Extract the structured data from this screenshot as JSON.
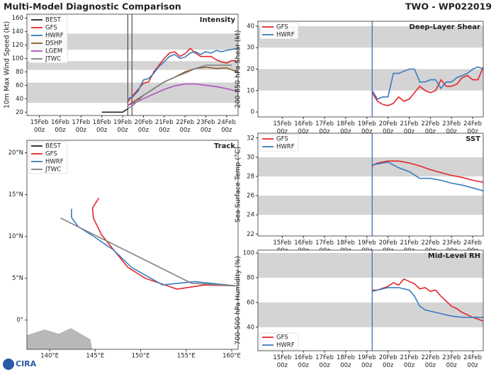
{
  "title": "Multi-Model Diagnostic Comparison",
  "storm_id": "TWO - WP022019",
  "logo": "CIRA",
  "chart_data": [
    {
      "type": "line",
      "title": "Intensity",
      "ylabel": "10m Max Wind Speed (kt)",
      "legend": "upper left",
      "xlim": [
        14.4,
        24.55
      ],
      "ylim": [
        15,
        166
      ],
      "xticks": [
        {
          "value": 15,
          "label": "15Feb 00z"
        },
        {
          "value": 16,
          "label": "16Feb 00z"
        },
        {
          "value": 17,
          "label": "17Feb 00z"
        },
        {
          "value": 18,
          "label": "18Feb 00z"
        },
        {
          "value": 19,
          "label": "19Feb 00z"
        },
        {
          "value": 20,
          "label": "20Feb 00z"
        },
        {
          "value": 21,
          "label": "21Feb 00z"
        },
        {
          "value": 22,
          "label": "22Feb 00z"
        },
        {
          "value": 23,
          "label": "23Feb 00z"
        },
        {
          "value": 24,
          "label": "24Feb 00z"
        }
      ],
      "yticks": [
        20,
        40,
        60,
        80,
        100,
        120,
        140,
        160
      ],
      "bands": [
        [
          34,
          64
        ],
        [
          83,
          96
        ],
        [
          113,
          137
        ]
      ],
      "band_color": "#d4d4d4",
      "vlines": [
        19.25,
        19.45
      ],
      "vline_color": "#5a4a4a",
      "series": [
        {
          "name": "BEST",
          "color": "#222222",
          "x": [
            18,
            18.5,
            19,
            19.25
          ],
          "values": [
            20,
            20,
            20,
            25
          ]
        },
        {
          "name": "GFS",
          "color": "#e3262a",
          "x": [
            19.25,
            19.5,
            20,
            20.25,
            20.5,
            21,
            21.25,
            21.5,
            21.75,
            22,
            22.25,
            22.5,
            22.75,
            23,
            23.25,
            23.5,
            23.75,
            24,
            24.25,
            24.5
          ],
          "values": [
            36,
            45,
            63,
            65,
            80,
            100,
            108,
            110,
            103,
            107,
            115,
            108,
            103,
            103,
            103,
            98,
            95,
            93,
            97,
            96
          ]
        },
        {
          "name": "HWRF",
          "color": "#3a7bbf",
          "x": [
            19.25,
            19.5,
            19.75,
            20,
            20.25,
            20.5,
            20.75,
            21,
            21.25,
            21.5,
            21.75,
            22,
            22.25,
            22.5,
            22.75,
            23,
            23.25,
            23.5,
            23.75,
            24,
            24.5
          ],
          "values": [
            40,
            43,
            52,
            68,
            70,
            78,
            88,
            95,
            103,
            106,
            100,
            102,
            108,
            110,
            106,
            110,
            108,
            112,
            110,
            112,
            115
          ]
        },
        {
          "name": "DSHP",
          "color": "#8b5a2b",
          "x": [
            19.25,
            19.5,
            20,
            20.5,
            21,
            21.5,
            22,
            22.5,
            23,
            23.5,
            24,
            24.5
          ],
          "values": [
            30,
            35,
            45,
            55,
            65,
            72,
            80,
            85,
            87,
            85,
            86,
            80
          ]
        },
        {
          "name": "LGEM",
          "color": "#b04fc0",
          "x": [
            19.25,
            19.5,
            20,
            20.5,
            21,
            21.5,
            22,
            22.5,
            23,
            23.5,
            24,
            24.5
          ],
          "values": [
            30,
            33,
            40,
            47,
            54,
            59,
            62,
            62,
            60,
            58,
            55,
            51
          ]
        },
        {
          "name": "JTWC",
          "color": "#808080",
          "x": [
            19.25,
            19.5,
            20,
            20.5,
            21,
            21.5,
            22,
            22.5,
            23,
            23.5,
            24,
            24.25
          ],
          "values": [
            25,
            30,
            45,
            55,
            65,
            72,
            78,
            85,
            90,
            90,
            90,
            90
          ]
        }
      ]
    },
    {
      "type": "line",
      "title": "Deep-Layer Shear",
      "ylabel": "200-850 hPa Shear (kt)",
      "legend": "upper left",
      "xlim": [
        13.85,
        24.5
      ],
      "ylim": [
        -2.3,
        42.3
      ],
      "xticks": [
        {
          "value": 15,
          "label": "15Feb 00z"
        },
        {
          "value": 16,
          "label": "16Feb 00z"
        },
        {
          "value": 17,
          "label": "17Feb 00z"
        },
        {
          "value": 18,
          "label": "18Feb 00z"
        },
        {
          "value": 19,
          "label": "19Feb 00z"
        },
        {
          "value": 20,
          "label": "20Feb 00z"
        },
        {
          "value": 21,
          "label": "21Feb 00z"
        },
        {
          "value": 22,
          "label": "22Feb 00z"
        },
        {
          "value": 23,
          "label": "23Feb 00z"
        },
        {
          "value": 24,
          "label": "24Feb 00z"
        }
      ],
      "yticks": [
        0,
        10,
        20,
        30,
        40
      ],
      "bands": [
        [
          10,
          20
        ],
        [
          30,
          40
        ]
      ],
      "band_color": "#d4d4d4",
      "vlines": [
        19.25
      ],
      "vline_color": "#3a5fbf",
      "series": [
        {
          "name": "GFS",
          "color": "#e3262a",
          "x": [
            19.25,
            19.5,
            19.75,
            20,
            20.25,
            20.5,
            20.75,
            21,
            21.25,
            21.5,
            21.75,
            22,
            22.25,
            22.5,
            22.75,
            23,
            23.25,
            23.5,
            23.75,
            24,
            24.25,
            24.5
          ],
          "values": [
            9,
            5,
            3.5,
            3,
            4,
            7,
            5,
            6,
            9,
            12,
            10,
            9,
            10,
            15,
            12,
            12,
            13,
            16,
            17,
            15,
            15,
            21
          ]
        },
        {
          "name": "HWRF",
          "color": "#3a7bbf",
          "x": [
            19.25,
            19.5,
            19.75,
            20,
            20.25,
            20.5,
            20.75,
            21,
            21.25,
            21.5,
            21.75,
            22,
            22.25,
            22.5,
            22.75,
            23,
            23.25,
            23.5,
            23.75,
            24,
            24.25,
            24.5
          ],
          "values": [
            10,
            6,
            7,
            7,
            18,
            18,
            19,
            20,
            20,
            14,
            14,
            15,
            15,
            11,
            14,
            14,
            16,
            17,
            18,
            20,
            21,
            20
          ]
        }
      ]
    },
    {
      "type": "line",
      "title": "Track",
      "legend": "upper left",
      "xlim": [
        137.5,
        160.7
      ],
      "ylim": [
        -3.5,
        21.5
      ],
      "xticks": [
        {
          "value": 140,
          "label": "140°E"
        },
        {
          "value": 145,
          "label": "145°E"
        },
        {
          "value": 150,
          "label": "150°E"
        },
        {
          "value": 155,
          "label": "155°E"
        },
        {
          "value": 160,
          "label": "160°E"
        }
      ],
      "yticks": [
        {
          "value": 0,
          "label": "0°"
        },
        {
          "value": 5,
          "label": "5°N"
        },
        {
          "value": 10,
          "label": "10°N"
        },
        {
          "value": 15,
          "label": "15°N"
        },
        {
          "value": 20,
          "label": "20°N"
        }
      ],
      "series": [
        {
          "name": "BEST",
          "color": "#222222",
          "x": [
            160.4,
            158.5,
            157.0
          ],
          "values": [
            4.1,
            4.2,
            4.2
          ]
        },
        {
          "name": "GFS",
          "color": "#e3262a",
          "x": [
            160.4,
            157.1,
            154.0,
            150.5,
            148.6,
            146.8,
            145.7,
            144.8,
            144.7,
            145.4
          ],
          "values": [
            4.1,
            4.2,
            3.7,
            5.0,
            6.3,
            8.7,
            10.2,
            12.2,
            13.4,
            14.6
          ]
        },
        {
          "name": "HWRF",
          "color": "#3a7bbf",
          "x": [
            160.4,
            155.9,
            152.4,
            149.0,
            147.0,
            144.7,
            143.1,
            142.4,
            142.4
          ],
          "values": [
            4.1,
            4.6,
            4.2,
            6.3,
            8.4,
            10.1,
            11.2,
            12.3,
            13.3
          ]
        },
        {
          "name": "JTWC",
          "color": "#808080",
          "x": [
            160.4,
            155.6,
            141.2
          ],
          "values": [
            4.1,
            4.4,
            12.2
          ]
        }
      ]
    },
    {
      "type": "line",
      "title": "SST",
      "ylabel": "Sea Surface Temp (°C)",
      "legend": "upper left",
      "xlim": [
        13.85,
        24.5
      ],
      "ylim": [
        21.8,
        32.5
      ],
      "xticks": [
        {
          "value": 15,
          "label": "15Feb 00z"
        },
        {
          "value": 16,
          "label": "16Feb 00z"
        },
        {
          "value": 17,
          "label": "17Feb 00z"
        },
        {
          "value": 18,
          "label": "18Feb 00z"
        },
        {
          "value": 19,
          "label": "19Feb 00z"
        },
        {
          "value": 20,
          "label": "20Feb 00z"
        },
        {
          "value": 21,
          "label": "21Feb 00z"
        },
        {
          "value": 22,
          "label": "22Feb 00z"
        },
        {
          "value": 23,
          "label": "23Feb 00z"
        },
        {
          "value": 24,
          "label": "24Feb 00z"
        }
      ],
      "yticks": [
        22,
        24,
        26,
        28,
        30,
        32
      ],
      "bands": [
        [
          24,
          26
        ],
        [
          28,
          30
        ]
      ],
      "band_color": "#d4d4d4",
      "vlines": [
        19.25
      ],
      "vline_color": "#3a5fbf",
      "series": [
        {
          "name": "GFS",
          "color": "#e3262a",
          "x": [
            19.25,
            19.5,
            20,
            20.5,
            21,
            21.5,
            22,
            22.5,
            23,
            23.5,
            24,
            24.5
          ],
          "values": [
            29.1,
            29.4,
            29.6,
            29.6,
            29.4,
            29.1,
            28.7,
            28.4,
            28.1,
            27.9,
            27.6,
            27.4
          ]
        },
        {
          "name": "HWRF",
          "color": "#3a7bbf",
          "x": [
            19.25,
            19.5,
            20,
            20.5,
            21,
            21.5,
            22,
            22.5,
            23,
            23.5,
            24,
            24.5
          ],
          "values": [
            29.2,
            29.3,
            29.5,
            28.9,
            28.5,
            27.8,
            27.8,
            27.6,
            27.3,
            27.1,
            26.8,
            26.5
          ]
        }
      ]
    },
    {
      "type": "line",
      "title": "Mid-Level RH",
      "ylabel": "700-500 hPa Humidity (%)",
      "legend": "lower left",
      "xlim": [
        13.85,
        24.5
      ],
      "ylim": [
        21,
        102.3
      ],
      "xticks": [
        {
          "value": 15,
          "label": "15Feb 00z"
        },
        {
          "value": 16,
          "label": "16Feb 00z"
        },
        {
          "value": 17,
          "label": "17Feb 00z"
        },
        {
          "value": 18,
          "label": "18Feb 00z"
        },
        {
          "value": 19,
          "label": "19Feb 00z"
        },
        {
          "value": 20,
          "label": "20Feb 00z"
        },
        {
          "value": 21,
          "label": "21Feb 00z"
        },
        {
          "value": 22,
          "label": "22Feb 00z"
        },
        {
          "value": 23,
          "label": "23Feb 00z"
        },
        {
          "value": 24,
          "label": "24Feb 00z"
        }
      ],
      "yticks": [
        40,
        60,
        80,
        100
      ],
      "bands": [
        [
          40,
          60
        ],
        [
          80,
          100
        ]
      ],
      "band_color": "#d4d4d4",
      "vlines": [
        19.25
      ],
      "vline_color": "#3a5fbf",
      "series": [
        {
          "name": "GFS",
          "color": "#e3262a",
          "x": [
            19.25,
            19.5,
            20,
            20.25,
            20.5,
            20.75,
            21,
            21.25,
            21.5,
            21.75,
            22,
            22.25,
            22.5,
            22.75,
            23,
            23.25,
            23.5,
            23.75,
            24,
            24.5
          ],
          "values": [
            70,
            70,
            73,
            76,
            74,
            79,
            77,
            75,
            71,
            72,
            69,
            70,
            65,
            61,
            57,
            55,
            52,
            50,
            48,
            45
          ]
        },
        {
          "name": "HWRF",
          "color": "#3a7bbf",
          "x": [
            19.25,
            19.5,
            20,
            20.5,
            21,
            21.25,
            21.5,
            21.75,
            22,
            22.5,
            23,
            23.5,
            24,
            24.5
          ],
          "values": [
            69,
            70,
            72,
            72,
            70,
            65,
            57,
            54,
            53,
            51,
            49,
            48,
            48,
            48
          ]
        }
      ]
    }
  ]
}
